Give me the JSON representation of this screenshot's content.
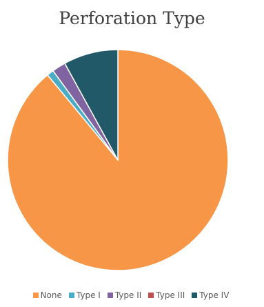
{
  "chart_data": {
    "type": "pie",
    "title": "Perforation Type",
    "legend_position": "bottom",
    "slices": [
      {
        "name": "None",
        "value": 89.0,
        "color": "#F79646"
      },
      {
        "name": "Type I",
        "value": 1.0,
        "color": "#4BACC6"
      },
      {
        "name": "Type II",
        "value": 2.0,
        "color": "#8064A2"
      },
      {
        "name": "Type III",
        "value": 0.0,
        "color": "#C0504D"
      },
      {
        "name": "Type IV",
        "value": 8.0,
        "color": "#215968"
      }
    ]
  }
}
